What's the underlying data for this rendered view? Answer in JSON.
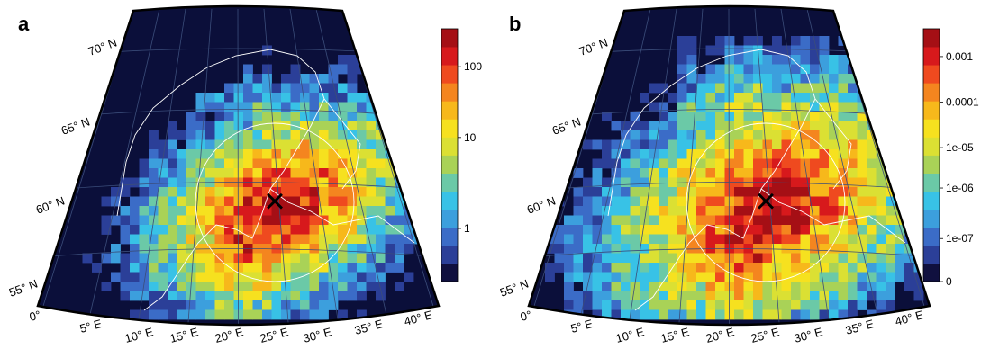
{
  "panels": [
    {
      "label": "a",
      "lat_labels": [
        "70° N",
        "65° N",
        "60° N",
        "55° N"
      ],
      "lon_labels": [
        "0°",
        "5° E",
        "10° E",
        "15° E",
        "20° E",
        "25° E",
        "30° E",
        "35° E",
        "40° E"
      ],
      "colorbar": {
        "scale": "log",
        "colors": [
          "#10103f",
          "#2b3f98",
          "#3b6cc7",
          "#3c9fdd",
          "#38c2e6",
          "#6bc9a7",
          "#a9d257",
          "#dbe033",
          "#f6e11f",
          "#f7b81b",
          "#f4851f",
          "#ef4a1f",
          "#d7191c",
          "#a50f15"
        ],
        "ticks": [
          {
            "label": "100",
            "level": 0.85
          },
          {
            "label": "10",
            "level": 0.57
          },
          {
            "label": "1",
            "level": 0.21
          }
        ]
      },
      "marker": "×"
    },
    {
      "label": "b",
      "lat_labels": [
        "70° N",
        "65° N",
        "60° N",
        "55° N"
      ],
      "lon_labels": [
        "0°",
        "5° E",
        "10° E",
        "15° E",
        "20° E",
        "25° E",
        "30° E",
        "35° E",
        "40° E"
      ],
      "colorbar": {
        "scale": "log",
        "colors": [
          "#10103f",
          "#2b3f98",
          "#3b6cc7",
          "#3c9fdd",
          "#38c2e6",
          "#6bc9a7",
          "#a9d257",
          "#dbe033",
          "#f6e11f",
          "#f7b81b",
          "#f4851f",
          "#ef4a1f",
          "#d7191c",
          "#a50f15"
        ],
        "ticks": [
          {
            "label": "0.001",
            "level": 0.89
          },
          {
            "label": "0.0001",
            "level": 0.71
          },
          {
            "label": "1e-05",
            "level": 0.53
          },
          {
            "label": "1e-06",
            "level": 0.37
          },
          {
            "label": "1e-07",
            "level": 0.17
          },
          {
            "label": "0",
            "level": 0.0
          }
        ]
      },
      "marker": "×"
    }
  ],
  "ocean_color": "#0b0f3a",
  "grid_color": "#3b4d7a",
  "coast_color": "#ffffff"
}
